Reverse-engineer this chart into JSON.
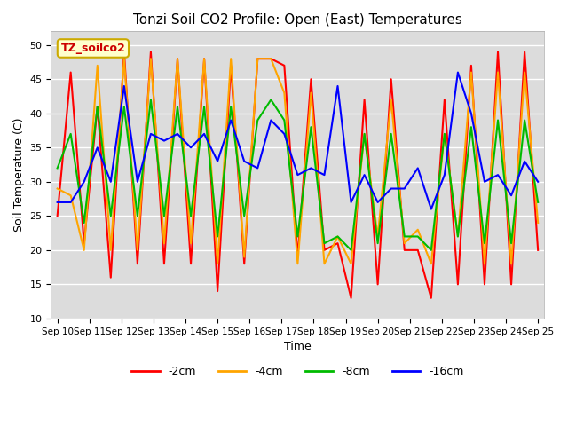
{
  "title": "Tonzi Soil CO2 Profile: Open (East) Temperatures",
  "xlabel": "Time",
  "ylabel": "Soil Temperature (C)",
  "ylim": [
    10,
    52
  ],
  "yticks": [
    10,
    15,
    20,
    25,
    30,
    35,
    40,
    45,
    50
  ],
  "background_color": "#dcdcdc",
  "legend_label": "TZ_soilco2",
  "series": {
    "-2cm": {
      "color": "#ff0000",
      "data": [
        25,
        46,
        21,
        41,
        16,
        49,
        18,
        49,
        18,
        48,
        18,
        48,
        14,
        47,
        18,
        48,
        48,
        47,
        19,
        45,
        20,
        21,
        13,
        42,
        15,
        45,
        20,
        20,
        13,
        42,
        15,
        47,
        15,
        49,
        15,
        49,
        20
      ]
    },
    "-4cm": {
      "color": "#ffa500",
      "data": [
        29,
        28,
        20,
        47,
        20,
        48,
        20,
        48,
        21,
        48,
        21,
        48,
        18,
        48,
        19,
        48,
        48,
        43,
        18,
        43,
        18,
        22,
        18,
        37,
        22,
        42,
        21,
        23,
        18,
        37,
        22,
        46,
        18,
        46,
        18,
        46,
        24
      ]
    },
    "-8cm": {
      "color": "#00bb00",
      "data": [
        32,
        37,
        24,
        41,
        25,
        41,
        25,
        42,
        25,
        41,
        25,
        41,
        22,
        41,
        25,
        39,
        42,
        39,
        22,
        38,
        21,
        22,
        20,
        37,
        21,
        37,
        22,
        22,
        20,
        37,
        22,
        38,
        21,
        39,
        21,
        39,
        27
      ]
    },
    "-16cm": {
      "color": "#0000ff",
      "data": [
        27,
        27,
        30,
        35,
        30,
        44,
        30,
        37,
        36,
        37,
        35,
        37,
        33,
        39,
        33,
        32,
        39,
        37,
        31,
        32,
        31,
        44,
        27,
        31,
        27,
        29,
        29,
        32,
        26,
        31,
        46,
        40,
        30,
        31,
        28,
        33,
        30
      ]
    }
  },
  "xtick_labels": [
    "Sep 10",
    "Sep 11",
    "Sep 12",
    "Sep 13",
    "Sep 14",
    "Sep 15",
    "Sep 16",
    "Sep 17",
    "Sep 18",
    "Sep 19",
    "Sep 20",
    "Sep 21",
    "Sep 22",
    "Sep 23",
    "Sep 24",
    "Sep 25"
  ],
  "n_points": 37
}
